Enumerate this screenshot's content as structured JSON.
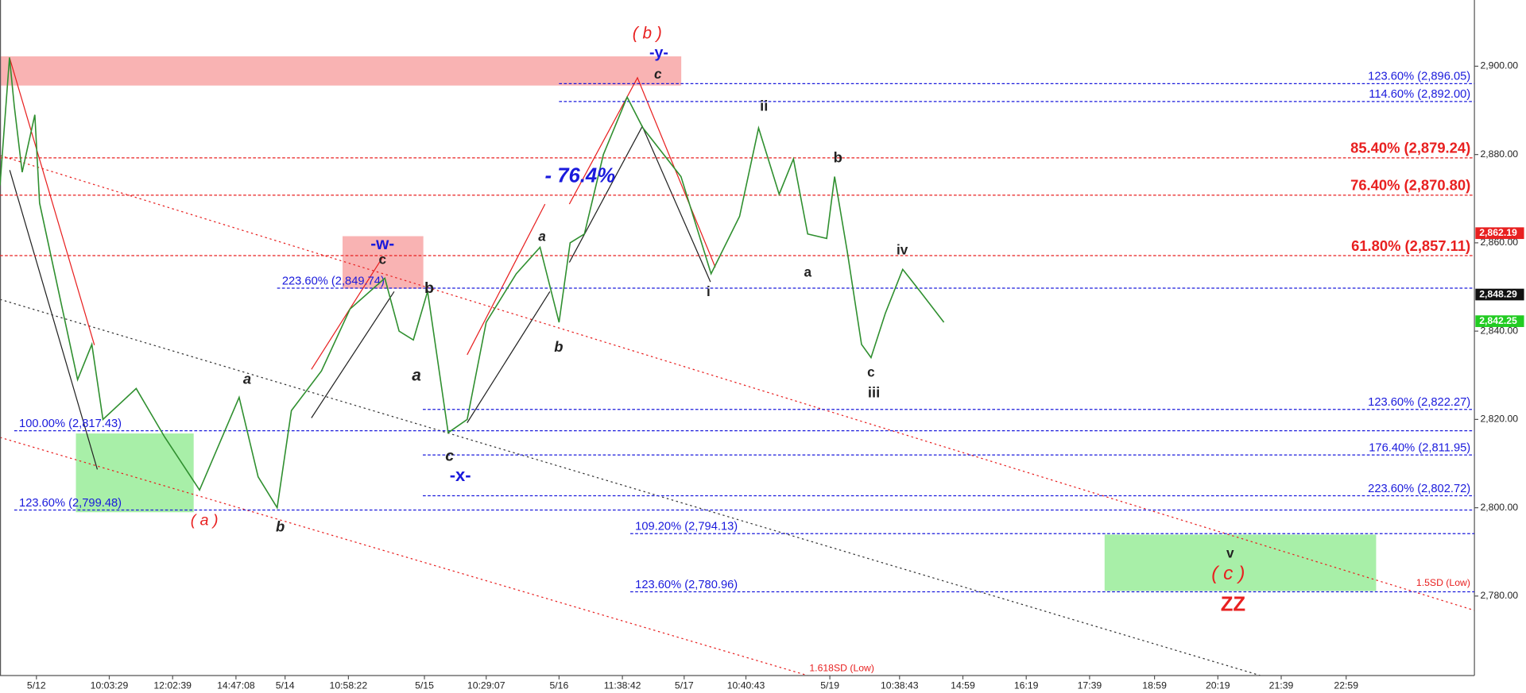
{
  "chart_data": {
    "type": "line",
    "color": "#2f8f2f",
    "x": [
      0,
      6,
      9,
      14,
      22,
      25,
      37,
      49,
      58,
      65,
      86,
      104,
      126,
      151,
      163,
      175,
      184,
      203,
      221,
      243,
      252,
      261,
      270,
      283,
      295,
      307,
      326,
      341,
      353,
      360,
      369,
      381,
      396,
      406,
      430,
      449,
      467,
      479,
      492,
      501,
      510,
      522,
      527,
      535,
      544,
      550,
      559,
      570,
      581,
      596
    ],
    "values": [
      2873,
      2902,
      2891,
      2876,
      2889,
      2869,
      2849,
      2829,
      2837,
      2820,
      2827,
      2816,
      2804,
      2825,
      2807,
      2800,
      2822,
      2831,
      2845,
      2852,
      2840,
      2838,
      2849,
      2817,
      2820,
      2842,
      2853,
      2859,
      2842,
      2860,
      2862,
      2880,
      2893,
      2886,
      2875,
      2853,
      2866,
      2886,
      2871,
      2879,
      2862,
      2861,
      2875,
      2858,
      2837,
      2834,
      2844,
      2854,
      2849,
      2842
    ],
    "xlim": [
      0,
      931
    ],
    "ylim": [
      2762,
      2915
    ],
    "yticks": [
      {
        "value": 2780,
        "label": "2,780.00"
      },
      {
        "value": 2800,
        "label": "2,800.00"
      },
      {
        "value": 2820,
        "label": "2,820.00"
      },
      {
        "value": 2840,
        "label": "2,840.00"
      },
      {
        "value": 2860,
        "label": "2,860.00"
      },
      {
        "value": 2880,
        "label": "2,880.00"
      },
      {
        "value": 2900,
        "label": "2,900.00"
      }
    ],
    "xticks": [
      {
        "value": 23,
        "label": "5/12"
      },
      {
        "value": 69,
        "label": "10:03:29"
      },
      {
        "value": 109,
        "label": "12:02:39"
      },
      {
        "value": 149,
        "label": "14:47:08"
      },
      {
        "value": 180,
        "label": "5/14"
      },
      {
        "value": 220,
        "label": "10:58:22"
      },
      {
        "value": 268,
        "label": "5/15"
      },
      {
        "value": 307,
        "label": "10:29:07"
      },
      {
        "value": 353,
        "label": "5/16"
      },
      {
        "value": 393,
        "label": "11:38:42"
      },
      {
        "value": 432,
        "label": "5/17"
      },
      {
        "value": 471,
        "label": "10:40:43"
      },
      {
        "value": 524,
        "label": "5/19"
      },
      {
        "value": 568,
        "label": "10:38:43"
      },
      {
        "value": 608,
        "label": "14:59"
      },
      {
        "value": 648,
        "label": "16:19"
      },
      {
        "value": 688,
        "label": "17:39"
      },
      {
        "value": 729,
        "label": "18:59"
      },
      {
        "value": 769,
        "label": "20:19"
      },
      {
        "value": 809,
        "label": "21:39"
      },
      {
        "value": 850,
        "label": "22:59"
      }
    ],
    "levels": [
      {
        "value": 2896.05,
        "label": "123.60% (2,896.05)",
        "color": "#1a1adc",
        "x_start": 353,
        "label_side": "right"
      },
      {
        "value": 2892.0,
        "label": "114.60% (2,892.00)",
        "color": "#1a1adc",
        "x_start": 353,
        "label_side": "right"
      },
      {
        "value": 2879.24,
        "label": "85.40% (2,879.24)",
        "color": "#e82020",
        "x_start": 0,
        "label_side": "right"
      },
      {
        "value": 2870.8,
        "label": "76.40% (2,870.80)",
        "color": "#e82020",
        "x_start": 0,
        "label_side": "right"
      },
      {
        "value": 2857.11,
        "label": "61.80% (2,857.11)",
        "color": "#e82020",
        "x_start": 0,
        "label_side": "right"
      },
      {
        "value": 2849.74,
        "label": "223.60% (2,849.74)",
        "color": "#1a1adc",
        "x_start": 175,
        "label_side": "left"
      },
      {
        "value": 2822.27,
        "label": "123.60% (2,822.27)",
        "color": "#1a1adc",
        "x_start": 267,
        "label_side": "right"
      },
      {
        "value": 2817.43,
        "label": "100.00% (2,817.43)",
        "color": "#1a1adc",
        "x_start": 9,
        "label_side": "left"
      },
      {
        "value": 2811.95,
        "label": "176.40% (2,811.95)",
        "color": "#1a1adc",
        "x_start": 267,
        "label_side": "right"
      },
      {
        "value": 2802.72,
        "label": "223.60% (2,802.72)",
        "color": "#1a1adc",
        "x_start": 267,
        "label_side": "right"
      },
      {
        "value": 2799.48,
        "label": "123.60% (2,799.48)",
        "color": "#1a1adc",
        "x_start": 9,
        "label_side": "left"
      },
      {
        "value": 2794.13,
        "label": "109.20% (2,794.13)",
        "color": "#1a1adc",
        "x_start": 398,
        "label_side": "left"
      },
      {
        "value": 2780.96,
        "label": "123.60% (2,780.96)",
        "color": "#1a1adc",
        "x_start": 398,
        "label_side": "left"
      }
    ],
    "price_tags": [
      {
        "value": 2862.19,
        "label": "2,862.19",
        "color": "#e82020"
      },
      {
        "value": 2848.29,
        "label": "2,848.29",
        "color": "#111111"
      },
      {
        "value": 2842.25,
        "label": "2,842.25",
        "color": "#22cc22"
      }
    ],
    "wave_labels": [
      "( b )",
      "-y-",
      "c",
      "ii",
      "b",
      "- 76.4%",
      "-w-",
      "c",
      "iv",
      "a",
      "b",
      "a",
      "i",
      "b",
      "a",
      "c",
      "iii",
      "a",
      "c",
      "-x-",
      "( a )",
      "b",
      "v",
      "( c )",
      "ZZ"
    ],
    "channel_labels": [
      "1.5SD (Low)",
      "1.618SD (Low)"
    ]
  }
}
